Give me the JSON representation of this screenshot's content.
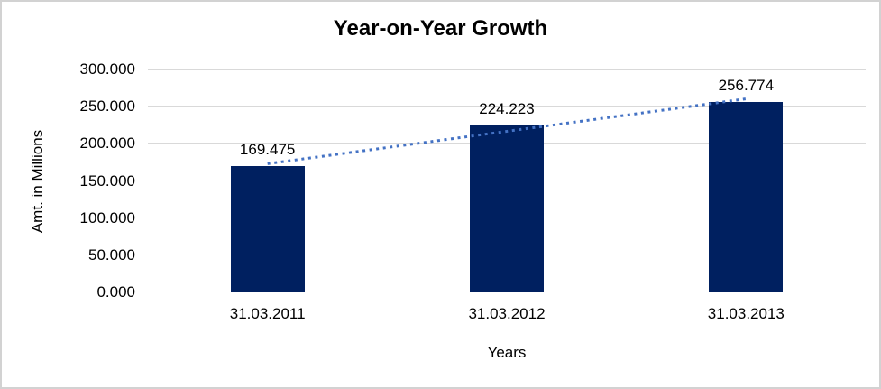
{
  "chart_data": {
    "type": "bar",
    "title": "Year-on-Year Growth",
    "categories": [
      "31.03.2011",
      "31.03.2012",
      "31.03.2013"
    ],
    "values": [
      169.475,
      224.223,
      256.774
    ],
    "data_labels": [
      "169.475",
      "224.223",
      "256.774"
    ],
    "xlabel": "Years",
    "ylabel": "Amt. in Millions",
    "ylim": [
      0,
      300
    ],
    "ytick_step": 50,
    "ytick_labels": [
      "0.000",
      "50.000",
      "100.000",
      "150.000",
      "200.000",
      "250.000",
      "300.000"
    ],
    "grid": "horizontal-only",
    "legend": "none",
    "trendline": {
      "type": "linear",
      "style": "dotted"
    },
    "colors": {
      "bar": "#002060",
      "trendline": "#4472C4",
      "gridline": "#d9d9d9",
      "text": "#000000",
      "frame_border": "#d2d2d2",
      "background": "#ffffff"
    }
  }
}
